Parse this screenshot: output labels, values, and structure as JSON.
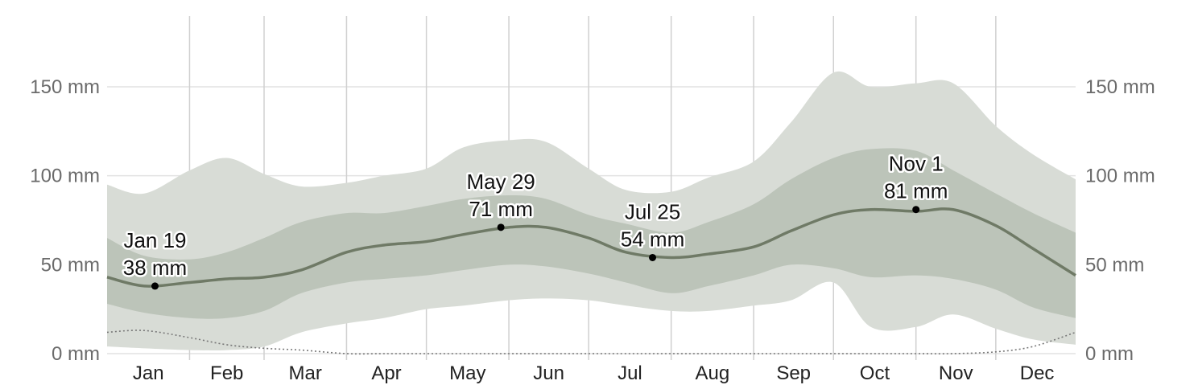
{
  "chart_data": {
    "type": "area",
    "title": "",
    "xlabel": "",
    "ylabel": "",
    "ylim": [
      0,
      190
    ],
    "y_ticks": [
      {
        "value": 0,
        "label": "0 mm"
      },
      {
        "value": 50,
        "label": "50 mm"
      },
      {
        "value": 100,
        "label": "100 mm"
      },
      {
        "value": 150,
        "label": "150 mm"
      }
    ],
    "months": [
      "Jan",
      "Feb",
      "Mar",
      "Apr",
      "May",
      "Jun",
      "Jul",
      "Aug",
      "Sep",
      "Oct",
      "Nov",
      "Dec"
    ],
    "grid": true,
    "legend": "none",
    "colors": {
      "outer_band": "#d8dcd6",
      "inner_band": "#bcc4b9",
      "median_line": "#6f7a66",
      "grid": "#e2e2e2",
      "month_separator": "#d0d0d0",
      "dotted_line": "#777777"
    },
    "x_day": [
      1,
      15,
      32,
      46,
      60,
      74,
      91,
      105,
      121,
      135,
      152,
      166,
      182,
      196,
      213,
      227,
      244,
      258,
      274,
      288,
      305,
      319,
      335,
      349,
      365
    ],
    "series": [
      {
        "role": "p10",
        "values": [
          4,
          3,
          2,
          2,
          4,
          12,
          17,
          20,
          25,
          27,
          30,
          31,
          30,
          27,
          24,
          24,
          27,
          30,
          40,
          15,
          15,
          22,
          14,
          8,
          5
        ]
      },
      {
        "role": "p25",
        "values": [
          28,
          23,
          20,
          20,
          24,
          34,
          40,
          42,
          44,
          47,
          50,
          49,
          45,
          40,
          34,
          38,
          44,
          50,
          48,
          43,
          44,
          42,
          36,
          26,
          20
        ]
      },
      {
        "role": "p75",
        "values": [
          65,
          55,
          53,
          57,
          65,
          74,
          79,
          79,
          83,
          87,
          89,
          87,
          78,
          73,
          68,
          74,
          84,
          98,
          110,
          115,
          114,
          103,
          90,
          79,
          68
        ]
      },
      {
        "role": "p90",
        "values": [
          95,
          90,
          103,
          110,
          101,
          94,
          96,
          100,
          104,
          116,
          120,
          119,
          104,
          92,
          91,
          99,
          108,
          130,
          158,
          150,
          152,
          152,
          128,
          112,
          98
        ]
      },
      {
        "role": "median",
        "values": [
          43,
          38,
          40,
          42,
          43,
          47,
          57,
          61,
          63,
          67,
          71,
          71,
          65,
          57,
          54,
          56,
          60,
          69,
          78,
          81,
          80,
          81,
          72,
          59,
          44
        ]
      },
      {
        "role": "dotted",
        "values": [
          12,
          13,
          9,
          5,
          3,
          2,
          0,
          0,
          0,
          0,
          0,
          0,
          0,
          0,
          0,
          0,
          0,
          0,
          0,
          0,
          0,
          0,
          1,
          4,
          12
        ]
      }
    ],
    "annotations": [
      {
        "day": 19,
        "value": 38,
        "date": "Jan 19",
        "amount": "38 mm"
      },
      {
        "day": 149,
        "value": 71,
        "date": "May 29",
        "amount": "71 mm"
      },
      {
        "day": 206,
        "value": 54,
        "date": "Jul 25",
        "amount": "54 mm"
      },
      {
        "day": 305,
        "value": 81,
        "date": "Nov 1",
        "amount": "81 mm"
      }
    ]
  }
}
